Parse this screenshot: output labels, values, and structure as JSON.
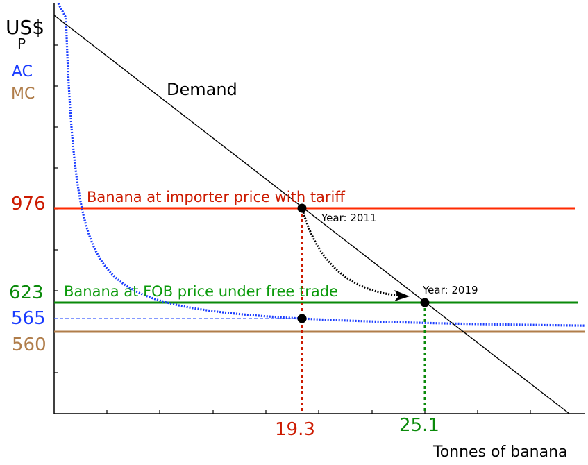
{
  "colors": {
    "axis": "#000000",
    "demand": "#000000",
    "ac": "#1a3cff",
    "mc": "#b07d4a",
    "tariff_line": "#ff2a00",
    "tariff_text": "#cc1a00",
    "free_trade": "#0a8a0a",
    "arrow": "#000000"
  },
  "labels": {
    "y_unit": "US$",
    "y_var": "P",
    "ac_legend": "AC",
    "mc_legend": "MC",
    "demand": "Demand",
    "x_axis": "Tonnes of banana",
    "tariff_line": "Banana at importer price with tariff",
    "free_trade_line": "Banana at FOB price under free trade",
    "year_2011": "Year: 2011",
    "year_2019": "Year: 2019",
    "price_976": "976",
    "price_623": "623",
    "price_565": "565",
    "price_560": "560",
    "qty_19_3": "19.3",
    "qty_25_1": "25.1"
  },
  "chart_data": {
    "type": "line",
    "title": "",
    "xlabel": "Tonnes of banana",
    "ylabel": "US$ P",
    "grid": false,
    "legend": [
      {
        "label": "AC",
        "color": "#1a3cff",
        "style": "dotted curve"
      },
      {
        "label": "MC",
        "color": "#b07d4a",
        "style": "solid horizontal"
      }
    ],
    "series": [
      {
        "name": "Demand",
        "type": "line",
        "style": "solid",
        "color": "#000000",
        "description": "Downward sloping linear demand passing through (19.3, 976) and (25.1, 623)"
      },
      {
        "name": "Banana at importer price with tariff",
        "type": "hline",
        "y": 976,
        "color": "#ff2a00"
      },
      {
        "name": "Banana at FOB price under free trade",
        "type": "hline",
        "y": 623,
        "color": "#0a8a0a"
      },
      {
        "name": "MC",
        "type": "hline",
        "y": 560,
        "color": "#b07d4a"
      },
      {
        "name": "AC",
        "type": "curve",
        "style": "dotted",
        "color": "#1a3cff",
        "description": "Declining average cost curve approaching MC; AC = 565 at quantity 19.3"
      },
      {
        "name": "AC reference",
        "type": "hline-dashed",
        "y": 565,
        "color": "#1a3cff",
        "x_range": [
          0,
          19.3
        ]
      }
    ],
    "points": [
      {
        "label": "Year: 2011",
        "x": 19.3,
        "y": 976
      },
      {
        "label": "Year: 2019",
        "x": 25.1,
        "y": 623
      },
      {
        "label": "AC at 19.3",
        "x": 19.3,
        "y": 565
      }
    ],
    "vlines": [
      {
        "x": 19.3,
        "color": "#cc1a00",
        "style": "dotted"
      },
      {
        "x": 25.1,
        "color": "#0a8a0a",
        "style": "dotted"
      }
    ],
    "annotations": [
      {
        "type": "curved-arrow",
        "from": "Year: 2011",
        "to": "Year: 2019",
        "style": "dotted"
      }
    ],
    "y_tick_labels": [
      "976",
      "623",
      "565",
      "560"
    ],
    "x_tick_labels": [
      "19.3",
      "25.1"
    ],
    "x_tick_count": 10,
    "y_tick_count": 9
  }
}
